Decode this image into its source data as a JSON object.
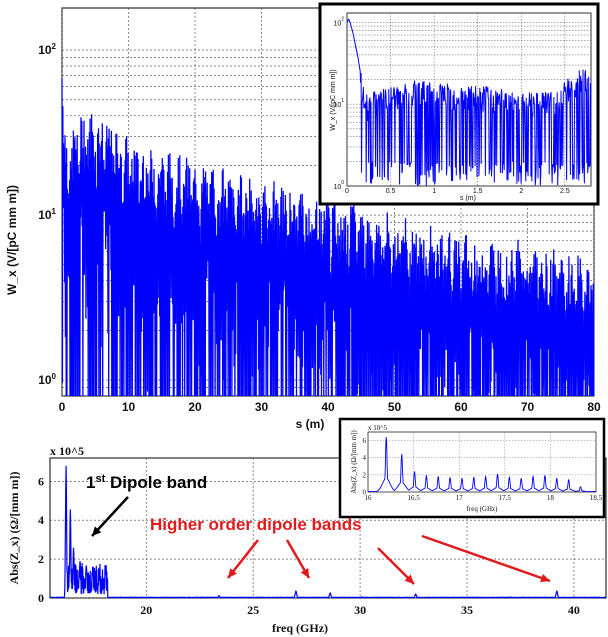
{
  "chart_data": [
    {
      "id": "wake",
      "type": "line",
      "xlabel": "s (m)",
      "ylabel": "W_x (V/[pC mm m])",
      "xlim": [
        0,
        80
      ],
      "ylim": [
        0.8,
        180
      ],
      "yscale": "log",
      "grid": true,
      "x_ticks": [
        "0",
        "10",
        "20",
        "30",
        "40",
        "50",
        "60",
        "70",
        "80"
      ],
      "y_ticks": [
        "10^0",
        "10^1",
        "10^2"
      ],
      "color": "#0000ff",
      "series": [
        {
          "x": [
            0,
            0.3,
            1,
            3,
            5,
            10,
            20,
            30,
            40,
            50,
            60,
            70,
            80
          ],
          "values": [
            130,
            40,
            30,
            45,
            45,
            30,
            22,
            17,
            14,
            10,
            8,
            7,
            5.5
          ]
        }
      ]
    },
    {
      "id": "wake-inset",
      "type": "line",
      "xlabel": "s (m)",
      "ylabel": "W_x (V/[pC mm m])",
      "xlim": [
        0,
        2.8
      ],
      "ylim": [
        1,
        130
      ],
      "yscale": "log",
      "grid": true,
      "x_ticks": [
        "0",
        "0.5",
        "1",
        "1.5",
        "2",
        "2.5"
      ],
      "y_ticks": [
        "10^0",
        "10^1",
        "10^2"
      ],
      "color": "#0000ff",
      "series": [
        {
          "x": [
            0,
            0.02,
            0.1,
            0.15,
            0.2,
            0.4,
            0.8,
            1.2,
            1.6,
            2.0,
            2.4,
            2.7,
            2.8
          ],
          "values": [
            100,
            110,
            50,
            25,
            12,
            14,
            18,
            16,
            15,
            14,
            14,
            25,
            22
          ]
        }
      ]
    },
    {
      "id": "impedance",
      "type": "line",
      "xlabel": "freq (GHz)",
      "ylabel": "Abs(Z_x) (Ω/[mm m])",
      "multiplier": "x 10^5",
      "xlim": [
        15.5,
        41.5
      ],
      "ylim": [
        0,
        7.2
      ],
      "grid": true,
      "x_ticks": [
        "20",
        "25",
        "30",
        "35",
        "40"
      ],
      "y_ticks": [
        "0",
        "2",
        "4",
        "6"
      ],
      "color": "#0000ff",
      "series": [
        {
          "x": [
            16.25,
            16.45,
            16.6,
            16.9,
            17.2,
            17.5,
            17.8,
            18.1,
            23.4,
            27.0,
            28.6,
            32.6,
            39.2
          ],
          "values": [
            6.8,
            4.6,
            2.6,
            1.9,
            1.7,
            1.6,
            1.5,
            1.4,
            0.12,
            0.35,
            0.25,
            0.2,
            0.35
          ]
        }
      ]
    },
    {
      "id": "impedance-inset",
      "type": "line",
      "xlabel": "freq (GHz)",
      "ylabel": "Abs(Z_x) (Ω/[mm m])",
      "multiplier": "x 10^5",
      "xlim": [
        16,
        18.5
      ],
      "ylim": [
        0,
        7
      ],
      "grid": true,
      "x_ticks": [
        "16",
        "16.5",
        "17",
        "17.5",
        "18",
        "18.5"
      ],
      "y_ticks": [
        "0",
        "2",
        "4",
        "6"
      ],
      "color": "#0000ff",
      "series": [
        {
          "x": [
            16.2,
            16.37,
            16.51,
            16.64,
            16.77,
            16.9,
            17.03,
            17.16,
            17.29,
            17.42,
            17.55,
            17.68,
            17.81,
            17.94,
            18.07,
            18.2,
            18.33
          ],
          "values": [
            6.4,
            4.4,
            2.4,
            1.9,
            1.8,
            1.7,
            1.6,
            1.7,
            1.8,
            2.1,
            1.7,
            1.6,
            1.8,
            1.9,
            1.6,
            1.4,
            0.6
          ]
        }
      ]
    }
  ],
  "annotations": {
    "first_band": {
      "super": "st",
      "prefix": "1",
      "rest": " Dipole band"
    },
    "higher_bands": "Higher order dipole bands"
  }
}
